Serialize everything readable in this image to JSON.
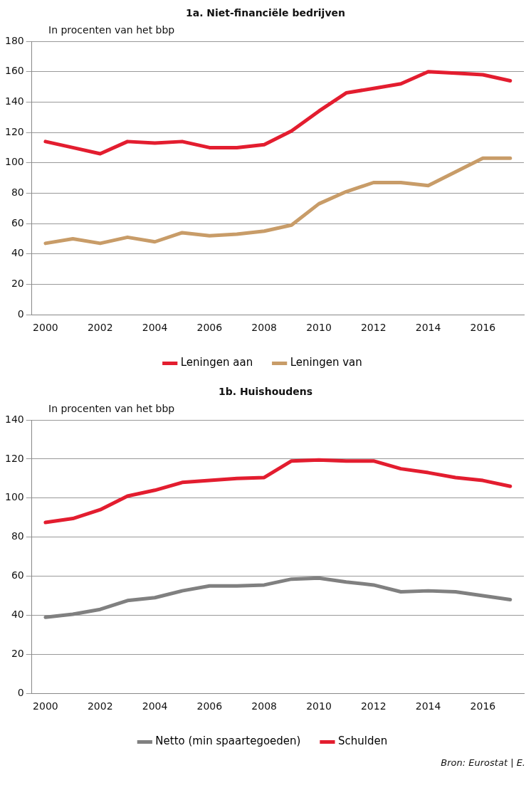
{
  "chart_data": [
    {
      "type": "line",
      "title": "1a. Niet-financiële bedrijven",
      "ylabel": "In procenten van het bbp",
      "categories": [
        "2000",
        null,
        "2002",
        null,
        "2004",
        null,
        "2006",
        null,
        "2008",
        null,
        "2010",
        null,
        "2012",
        null,
        "2014",
        null,
        "2016",
        null
      ],
      "series": [
        {
          "name": "Leningen aan",
          "color": "#e31d2f",
          "values": [
            114,
            110,
            106,
            114,
            113,
            114,
            110,
            110,
            112,
            121,
            134,
            146,
            149,
            152,
            160,
            159,
            158,
            154
          ]
        },
        {
          "name": "Leningen van",
          "color": "#c89c68",
          "values": [
            47,
            50,
            47,
            51,
            48,
            54,
            52,
            53,
            55,
            59,
            73,
            81,
            87,
            87,
            85,
            94,
            103,
            103
          ]
        }
      ],
      "ylim": [
        0,
        180
      ],
      "yticks": [
        0,
        20,
        40,
        60,
        80,
        100,
        120,
        140,
        160,
        180
      ],
      "grid": "y",
      "legend": "bottom",
      "marker": "none",
      "line_style": "solid"
    },
    {
      "type": "line",
      "title": "1b. Huishoudens",
      "ylabel": "In procenten van het bbp",
      "categories": [
        "2000",
        null,
        "2002",
        null,
        "2004",
        null,
        "2006",
        null,
        "2008",
        null,
        "2010",
        null,
        "2012",
        null,
        "2014",
        null,
        "2016",
        null
      ],
      "series": [
        {
          "name": "Netto (min spaartegoeden)",
          "color": "#808080",
          "values": [
            39,
            40.5,
            43,
            47.5,
            49,
            52.5,
            55,
            55,
            55.5,
            58.5,
            59,
            57,
            55.5,
            52,
            52.5,
            52,
            50,
            48
          ]
        },
        {
          "name": "Schulden",
          "color": "#e31d2f",
          "values": [
            87.5,
            89.5,
            94,
            101,
            104,
            108,
            109,
            110,
            110.5,
            119,
            119.5,
            119,
            119,
            115,
            113,
            110.5,
            109,
            106
          ]
        }
      ],
      "ylim": [
        0,
        140
      ],
      "yticks": [
        0,
        20,
        40,
        60,
        80,
        100,
        120,
        140
      ],
      "grid": "y",
      "legend": "bottom",
      "marker": "none",
      "line_style": "solid",
      "annotations": [
        "Bron: Eurostat | E."
      ]
    }
  ]
}
